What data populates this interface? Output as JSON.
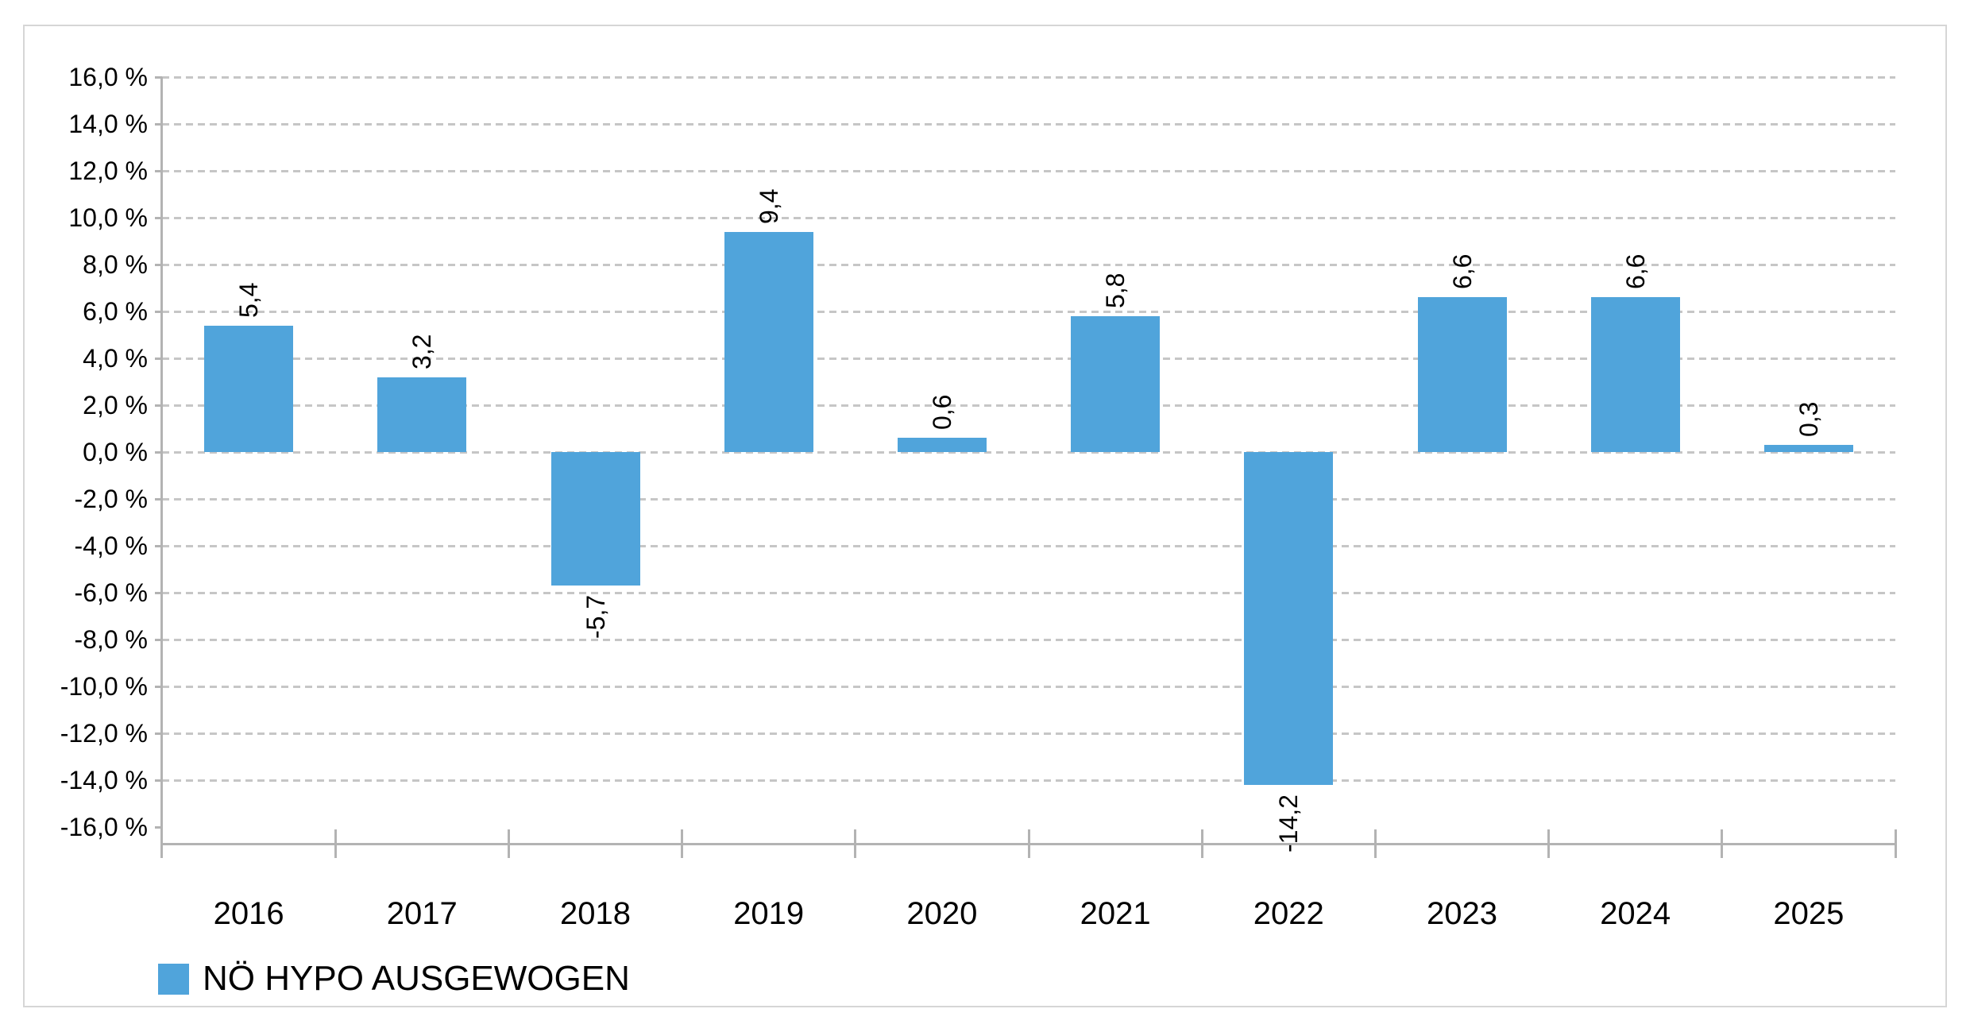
{
  "chart_data": {
    "type": "bar",
    "title": "",
    "categories": [
      "2016",
      "2017",
      "2018",
      "2019",
      "2020",
      "2021",
      "2022",
      "2023",
      "2024",
      "2025"
    ],
    "series": [
      {
        "name": "NÖ HYPO AUSGEWOGEN",
        "values": [
          5.4,
          3.2,
          -5.7,
          9.4,
          0.6,
          5.8,
          -14.2,
          6.6,
          6.6,
          0.3
        ]
      }
    ],
    "value_labels": [
      "5,4",
      "3,2",
      "-5,7",
      "9,4",
      "0,6",
      "5,8",
      "-14,2",
      "6,6",
      "6,6",
      "0,3"
    ],
    "value_label_rotation": -90,
    "xlabel": "",
    "ylabel": "",
    "ylim": [
      -16,
      16
    ],
    "ytick_step": 2,
    "ytick_labels": [
      "16,0 %",
      "14,0 %",
      "12,0 %",
      "10,0 %",
      "8,0 %",
      "6,0 %",
      "4,0 %",
      "2,0 %",
      "0,0 %",
      "-2,0 %",
      "-4,0 %",
      "-6,0 %",
      "-8,0 %",
      "-10,0 %",
      "-12,0 %",
      "-14,0 %",
      "-16,0 %"
    ],
    "grid": "horizontal-dashed",
    "legend_position": "bottom-left",
    "bar_color": "#50A4DB"
  },
  "legend": {
    "items": [
      {
        "label": "NÖ HYPO AUSGEWOGEN",
        "color": "#50A4DB"
      }
    ]
  },
  "colors": {
    "bar": "#50A4DB",
    "gridline": "#c6c6c6",
    "axis": "#b3b3b3",
    "frame_border": "#d6d6d6",
    "text": "#000000",
    "background": "#ffffff"
  }
}
